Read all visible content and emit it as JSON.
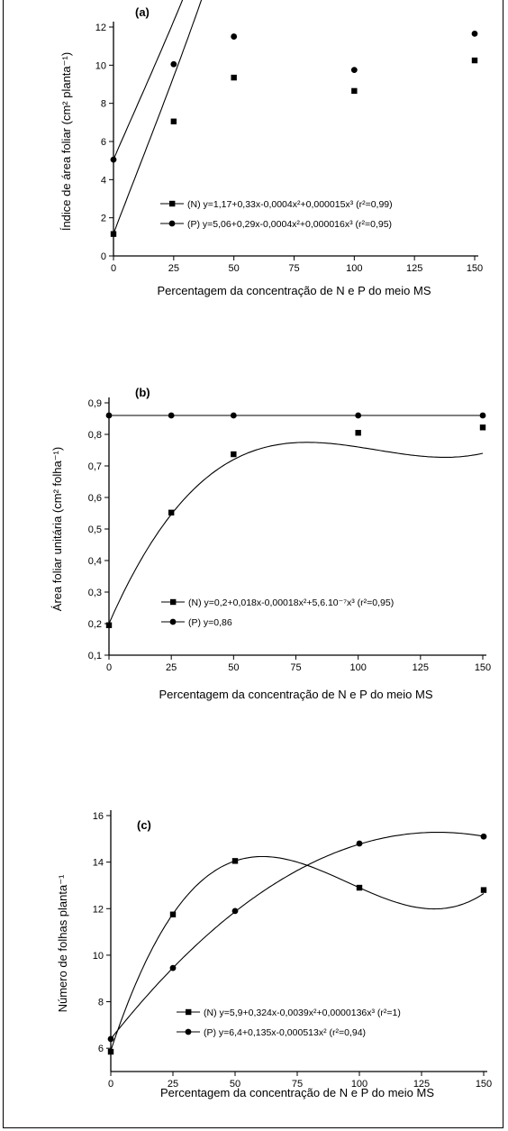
{
  "chart_data": [
    {
      "type": "line",
      "panel_label": "(a)",
      "xlabel": "Percentagem da concentração de N e P do meio MS",
      "ylabel": "Índice de área foliar (cm² planta⁻¹)",
      "xlim": [
        0,
        150
      ],
      "ylim": [
        0,
        12
      ],
      "xticks": [
        "0",
        "25",
        "50",
        "75",
        "100",
        "125",
        "150"
      ],
      "yticks": [
        "0",
        "2",
        "4",
        "6",
        "8",
        "10",
        "12"
      ],
      "x": [
        0,
        25,
        50,
        100,
        150
      ],
      "legend_position": "lower-center",
      "series": [
        {
          "name": "(N) y=1,17+0,33x-0,0004x²+0,000015x³ (r²=0,99)",
          "marker": "square",
          "values": [
            1.15,
            7.05,
            9.35,
            8.65,
            10.25
          ],
          "coef": [
            1.17,
            0.33,
            -0.0004,
            1.5e-05
          ]
        },
        {
          "name": "(P) y=5,06+0,29x-0,0004x²+0,000016x³ (r²=0,95)",
          "marker": "circle",
          "values": [
            5.05,
            10.05,
            11.5,
            9.75,
            11.65
          ],
          "coef": [
            5.06,
            0.29,
            -0.0004,
            1.6e-05
          ]
        }
      ]
    },
    {
      "type": "line",
      "panel_label": "(b)",
      "xlabel": "Percentagem da concentração de N e P do meio MS",
      "ylabel": "Área foliar unitária (cm² folha⁻¹)",
      "xlim": [
        0,
        150
      ],
      "ylim": [
        0.1,
        0.9
      ],
      "xticks": [
        "0",
        "25",
        "50",
        "75",
        "100",
        "125",
        "150"
      ],
      "yticks": [
        "0,1",
        "0,2",
        "0,3",
        "0,4",
        "0,5",
        "0,6",
        "0,7",
        "0,8",
        "0,9"
      ],
      "x": [
        0,
        25,
        50,
        100,
        150
      ],
      "legend_position": "lower-center",
      "series": [
        {
          "name": "(N) y=0,2+0,018x-0,00018x²+5,6.10⁻⁷x³ (r²=0,95)",
          "marker": "square",
          "values": [
            0.195,
            0.552,
            0.737,
            0.805,
            0.822
          ],
          "coef": [
            0.2,
            0.018,
            -0.00018,
            5.6e-07
          ]
        },
        {
          "name": "(P) y=0,86",
          "marker": "circle",
          "values": [
            0.86,
            0.86,
            0.86,
            0.86,
            0.86
          ],
          "coef": [
            0.86,
            0,
            0,
            0
          ]
        }
      ]
    },
    {
      "type": "line",
      "panel_label": "(c)",
      "xlabel": "Percentagem da concentração de N e P do meio MS",
      "ylabel": "Número de folhas planta⁻¹",
      "xlim": [
        0,
        150
      ],
      "ylim": [
        5,
        16
      ],
      "xticks": [
        "0",
        "25",
        "50",
        "75",
        "100",
        "125",
        "150"
      ],
      "yticks": [
        "6",
        "8",
        "10",
        "12",
        "14",
        "16"
      ],
      "x": [
        0,
        25,
        50,
        100,
        150
      ],
      "legend_position": "lower-right",
      "series": [
        {
          "name": "(N) y=5,9+0,324x-0,0039x²+0,0000136x³ (r²=1)",
          "marker": "square",
          "values": [
            5.85,
            11.75,
            14.05,
            12.9,
            12.8
          ],
          "coef": [
            5.9,
            0.324,
            -0.0039,
            1.36e-05
          ]
        },
        {
          "name": "(P) y=6,4+0,135x-0,000513x² (r²=0,94)",
          "marker": "circle",
          "values": [
            6.4,
            9.45,
            11.9,
            14.8,
            15.1
          ],
          "coef": [
            6.4,
            0.135,
            -0.000513,
            0
          ]
        }
      ]
    }
  ]
}
